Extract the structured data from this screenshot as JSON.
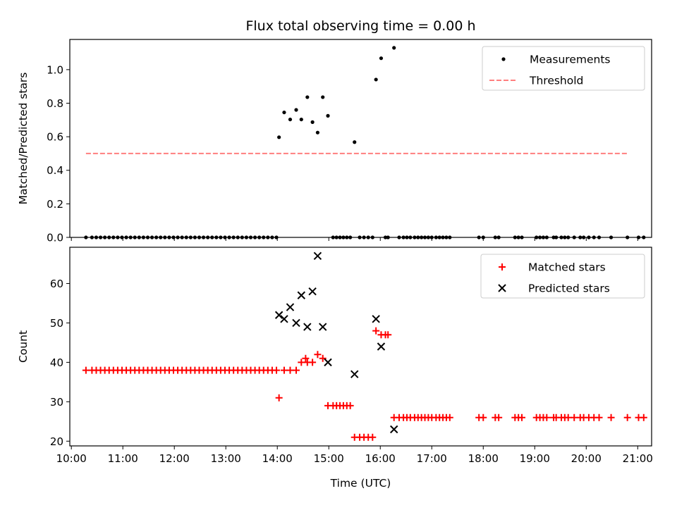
{
  "chart_data": [
    {
      "type": "scatter",
      "title": "Flux total observing time = 0.00 h",
      "xlabel": "",
      "ylabel": "Matched/Predicted stars",
      "ylim": [
        0,
        1.18
      ],
      "yticks": [
        0.0,
        0.2,
        0.4,
        0.6,
        0.8,
        1.0
      ],
      "ytick_labels": [
        "0.0",
        "0.2",
        "0.4",
        "0.6",
        "0.8",
        "1.0"
      ],
      "xlim_hours": [
        9.97,
        21.27
      ],
      "xticks_hours": [
        10,
        11,
        12,
        13,
        14,
        15,
        16,
        17,
        18,
        19,
        20,
        21
      ],
      "xtick_labels": [
        "",
        "",
        "",
        "",
        "",
        "",
        "",
        "",
        "",
        "",
        "",
        ""
      ],
      "legend": {
        "placement": "top-right",
        "entries": [
          "Measurements",
          "Threshold"
        ]
      },
      "series": [
        {
          "name": "Measurements",
          "marker": "dot",
          "color": "#000000",
          "points": [
            [
              "10:17",
              0
            ],
            [
              "10:24",
              0
            ],
            [
              "10:29",
              0
            ],
            [
              "10:34",
              0
            ],
            [
              "10:39",
              0
            ],
            [
              "10:44",
              0
            ],
            [
              "10:49",
              0
            ],
            [
              "10:54",
              0
            ],
            [
              "10:59",
              0
            ],
            [
              "11:04",
              0
            ],
            [
              "11:09",
              0
            ],
            [
              "11:14",
              0
            ],
            [
              "11:19",
              0
            ],
            [
              "11:24",
              0
            ],
            [
              "11:29",
              0
            ],
            [
              "11:34",
              0
            ],
            [
              "11:39",
              0
            ],
            [
              "11:44",
              0
            ],
            [
              "11:49",
              0
            ],
            [
              "11:54",
              0
            ],
            [
              "11:59",
              0
            ],
            [
              "12:04",
              0
            ],
            [
              "12:09",
              0
            ],
            [
              "12:14",
              0
            ],
            [
              "12:19",
              0
            ],
            [
              "12:24",
              0
            ],
            [
              "12:29",
              0
            ],
            [
              "12:34",
              0
            ],
            [
              "12:39",
              0
            ],
            [
              "12:44",
              0
            ],
            [
              "12:49",
              0
            ],
            [
              "12:54",
              0
            ],
            [
              "12:59",
              0
            ],
            [
              "13:04",
              0
            ],
            [
              "13:09",
              0
            ],
            [
              "13:14",
              0
            ],
            [
              "13:19",
              0
            ],
            [
              "13:24",
              0
            ],
            [
              "13:29",
              0
            ],
            [
              "13:34",
              0
            ],
            [
              "13:39",
              0
            ],
            [
              "13:44",
              0
            ],
            [
              "13:49",
              0
            ],
            [
              "13:54",
              0
            ],
            [
              "13:59",
              0
            ],
            [
              "14:02",
              0.597
            ],
            [
              "14:08",
              0.745
            ],
            [
              "14:15",
              0.703
            ],
            [
              "14:22",
              0.76
            ],
            [
              "14:28",
              0.703
            ],
            [
              "14:35",
              0.836
            ],
            [
              "14:41",
              0.687
            ],
            [
              "14:47",
              0.625
            ],
            [
              "14:53",
              0.836
            ],
            [
              "14:59",
              0.725
            ],
            [
              "15:05",
              0
            ],
            [
              "15:09",
              0
            ],
            [
              "15:13",
              0
            ],
            [
              "15:17",
              0
            ],
            [
              "15:21",
              0
            ],
            [
              "15:25",
              0
            ],
            [
              "15:30",
              0.568
            ],
            [
              "15:36",
              0
            ],
            [
              "15:41",
              0
            ],
            [
              "15:46",
              0
            ],
            [
              "15:51",
              0
            ],
            [
              "15:55",
              0.941
            ],
            [
              "16:01",
              1.068
            ],
            [
              "16:06",
              0
            ],
            [
              "16:09",
              0
            ],
            [
              "16:16",
              1.13
            ],
            [
              "16:22",
              0
            ],
            [
              "16:27",
              0
            ],
            [
              "16:31",
              0
            ],
            [
              "16:35",
              0
            ],
            [
              "16:40",
              0
            ],
            [
              "16:44",
              0
            ],
            [
              "16:48",
              0
            ],
            [
              "16:52",
              0
            ],
            [
              "16:56",
              0
            ],
            [
              "17:00",
              0
            ],
            [
              "17:05",
              0
            ],
            [
              "17:09",
              0
            ],
            [
              "17:13",
              0
            ],
            [
              "17:17",
              0
            ],
            [
              "17:21",
              0
            ],
            [
              "17:55",
              0
            ],
            [
              "18:00",
              0
            ],
            [
              "18:14",
              0
            ],
            [
              "18:18",
              0
            ],
            [
              "18:37",
              0
            ],
            [
              "18:41",
              0
            ],
            [
              "18:45",
              0
            ],
            [
              "19:02",
              0
            ],
            [
              "19:06",
              0
            ],
            [
              "19:10",
              0
            ],
            [
              "19:14",
              0
            ],
            [
              "19:22",
              0
            ],
            [
              "19:25",
              0
            ],
            [
              "19:31",
              0
            ],
            [
              "19:35",
              0
            ],
            [
              "19:39",
              0
            ],
            [
              "19:46",
              0
            ],
            [
              "19:53",
              0
            ],
            [
              "19:57",
              0
            ],
            [
              "20:03",
              0
            ],
            [
              "20:09",
              0
            ],
            [
              "20:15",
              0
            ],
            [
              "20:29",
              0
            ],
            [
              "20:48",
              0
            ],
            [
              "21:01",
              0
            ],
            [
              "21:07",
              0
            ]
          ]
        },
        {
          "name": "Threshold",
          "style": "dashed",
          "color": "#ff7f7f",
          "points": [
            [
              "10:17",
              0.5
            ],
            [
              "20:48",
              0.5
            ]
          ]
        }
      ]
    },
    {
      "type": "scatter",
      "title": "",
      "xlabel": "Time (UTC)",
      "ylabel": "Count",
      "ylim": [
        18.8,
        69.2
      ],
      "yticks": [
        20,
        30,
        40,
        50,
        60
      ],
      "ytick_labels": [
        "20",
        "30",
        "40",
        "50",
        "60"
      ],
      "xlim_hours": [
        9.97,
        21.27
      ],
      "xticks_hours": [
        10,
        11,
        12,
        13,
        14,
        15,
        16,
        17,
        18,
        19,
        20,
        21
      ],
      "xtick_labels": [
        "10:00",
        "11:00",
        "12:00",
        "13:00",
        "14:00",
        "15:00",
        "16:00",
        "17:00",
        "18:00",
        "19:00",
        "20:00",
        "21:00"
      ],
      "legend": {
        "placement": "top-right",
        "entries": [
          "Matched stars",
          "Predicted stars"
        ]
      },
      "series": [
        {
          "name": "Matched stars",
          "marker": "plus",
          "color": "#ff0000",
          "points": [
            [
              "10:17",
              38
            ],
            [
              "10:24",
              38
            ],
            [
              "10:29",
              38
            ],
            [
              "10:34",
              38
            ],
            [
              "10:39",
              38
            ],
            [
              "10:44",
              38
            ],
            [
              "10:49",
              38
            ],
            [
              "10:54",
              38
            ],
            [
              "10:59",
              38
            ],
            [
              "11:04",
              38
            ],
            [
              "11:09",
              38
            ],
            [
              "11:14",
              38
            ],
            [
              "11:19",
              38
            ],
            [
              "11:24",
              38
            ],
            [
              "11:29",
              38
            ],
            [
              "11:34",
              38
            ],
            [
              "11:39",
              38
            ],
            [
              "11:44",
              38
            ],
            [
              "11:49",
              38
            ],
            [
              "11:54",
              38
            ],
            [
              "11:59",
              38
            ],
            [
              "12:04",
              38
            ],
            [
              "12:09",
              38
            ],
            [
              "12:14",
              38
            ],
            [
              "12:19",
              38
            ],
            [
              "12:24",
              38
            ],
            [
              "12:29",
              38
            ],
            [
              "12:34",
              38
            ],
            [
              "12:39",
              38
            ],
            [
              "12:44",
              38
            ],
            [
              "12:49",
              38
            ],
            [
              "12:54",
              38
            ],
            [
              "12:59",
              38
            ],
            [
              "13:04",
              38
            ],
            [
              "13:09",
              38
            ],
            [
              "13:14",
              38
            ],
            [
              "13:19",
              38
            ],
            [
              "13:24",
              38
            ],
            [
              "13:29",
              38
            ],
            [
              "13:34",
              38
            ],
            [
              "13:39",
              38
            ],
            [
              "13:44",
              38
            ],
            [
              "13:49",
              38
            ],
            [
              "13:54",
              38
            ],
            [
              "13:59",
              38
            ],
            [
              "14:02",
              31
            ],
            [
              "14:08",
              38
            ],
            [
              "14:15",
              38
            ],
            [
              "14:22",
              38
            ],
            [
              "14:28",
              40
            ],
            [
              "14:33",
              41
            ],
            [
              "14:35",
              40
            ],
            [
              "14:41",
              40
            ],
            [
              "14:47",
              42
            ],
            [
              "14:53",
              41
            ],
            [
              "14:59",
              29
            ],
            [
              "15:05",
              29
            ],
            [
              "15:09",
              29
            ],
            [
              "15:13",
              29
            ],
            [
              "15:17",
              29
            ],
            [
              "15:21",
              29
            ],
            [
              "15:25",
              29
            ],
            [
              "15:30",
              21
            ],
            [
              "15:36",
              21
            ],
            [
              "15:41",
              21
            ],
            [
              "15:46",
              21
            ],
            [
              "15:51",
              21
            ],
            [
              "15:55",
              48
            ],
            [
              "16:01",
              47
            ],
            [
              "16:06",
              47
            ],
            [
              "16:09",
              47
            ],
            [
              "16:16",
              26
            ],
            [
              "16:22",
              26
            ],
            [
              "16:27",
              26
            ],
            [
              "16:31",
              26
            ],
            [
              "16:35",
              26
            ],
            [
              "16:40",
              26
            ],
            [
              "16:44",
              26
            ],
            [
              "16:48",
              26
            ],
            [
              "16:52",
              26
            ],
            [
              "16:56",
              26
            ],
            [
              "17:00",
              26
            ],
            [
              "17:05",
              26
            ],
            [
              "17:09",
              26
            ],
            [
              "17:13",
              26
            ],
            [
              "17:17",
              26
            ],
            [
              "17:21",
              26
            ],
            [
              "17:55",
              26
            ],
            [
              "18:00",
              26
            ],
            [
              "18:14",
              26
            ],
            [
              "18:18",
              26
            ],
            [
              "18:37",
              26
            ],
            [
              "18:41",
              26
            ],
            [
              "18:45",
              26
            ],
            [
              "19:02",
              26
            ],
            [
              "19:06",
              26
            ],
            [
              "19:10",
              26
            ],
            [
              "19:14",
              26
            ],
            [
              "19:22",
              26
            ],
            [
              "19:25",
              26
            ],
            [
              "19:31",
              26
            ],
            [
              "19:35",
              26
            ],
            [
              "19:39",
              26
            ],
            [
              "19:46",
              26
            ],
            [
              "19:53",
              26
            ],
            [
              "19:57",
              26
            ],
            [
              "20:03",
              26
            ],
            [
              "20:09",
              26
            ],
            [
              "20:15",
              26
            ],
            [
              "20:29",
              26
            ],
            [
              "20:48",
              26
            ],
            [
              "21:01",
              26
            ],
            [
              "21:07",
              26
            ]
          ]
        },
        {
          "name": "Predicted stars",
          "marker": "x",
          "color": "#000000",
          "points": [
            [
              "14:02",
              52
            ],
            [
              "14:08",
              51
            ],
            [
              "14:15",
              54
            ],
            [
              "14:22",
              50
            ],
            [
              "14:28",
              57
            ],
            [
              "14:35",
              49
            ],
            [
              "14:41",
              58
            ],
            [
              "14:47",
              67
            ],
            [
              "14:53",
              49
            ],
            [
              "14:59",
              40
            ],
            [
              "15:30",
              37
            ],
            [
              "15:55",
              51
            ],
            [
              "16:01",
              44
            ],
            [
              "16:16",
              23
            ]
          ]
        }
      ]
    }
  ]
}
